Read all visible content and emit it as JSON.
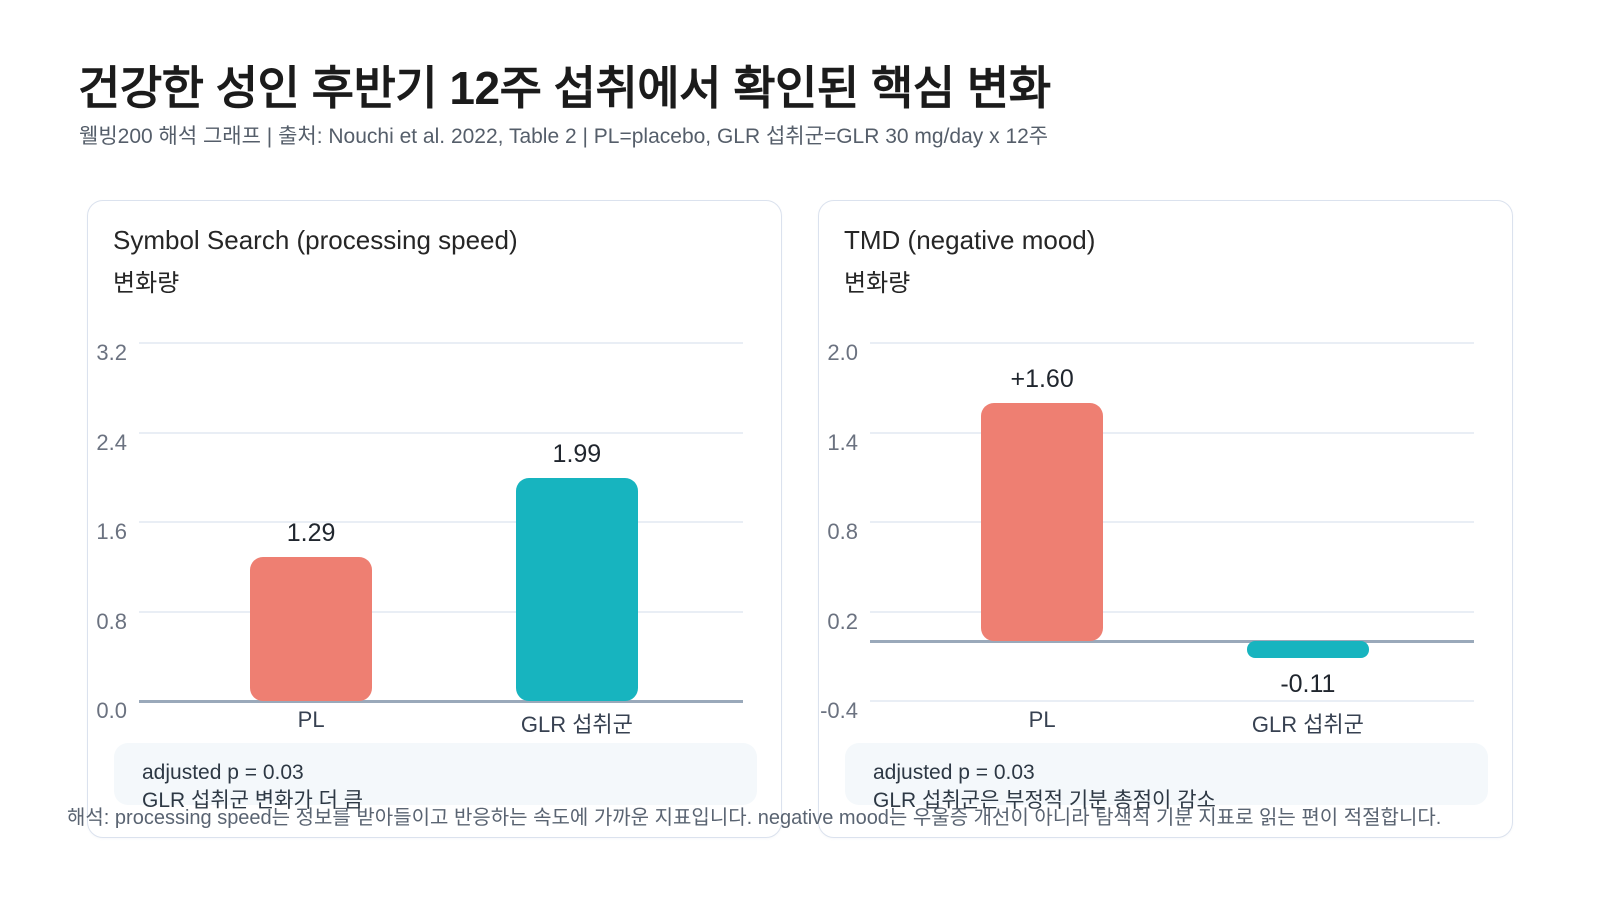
{
  "header": {
    "title": "건강한 성인 후반기 12주 섭취에서 확인된 핵심 변화",
    "subtitle": "웰빙200 해석 그래프 | 출처: Nouchi et al. 2022, Table 2 | PL=placebo, GLR 섭취군=GLR 30 mg/day x 12주"
  },
  "footer": {
    "caption": "해석: processing speed는 정보를 받아들이고 반응하는 속도에 가까운 지표입니다. negative mood는 우울증 개선이 아니라 탐색적 기분 지표로 읽는 편이 적절합니다."
  },
  "colors": {
    "pl_bar": "#EE7F72",
    "glr_bar": "#17B4BF",
    "gridline": "#E9EEF5",
    "zero_line": "#9AA9BA",
    "annotation_bg": "#F4F8FB",
    "card_border": "#DBE2EE"
  },
  "chart_data": [
    {
      "type": "bar",
      "title": "Symbol Search (processing speed)",
      "subtitle": "변화량",
      "categories": [
        "PL",
        "GLR 섭취군"
      ],
      "values": [
        1.29,
        1.99
      ],
      "value_labels": [
        "1.29",
        "1.99"
      ],
      "bar_colors": [
        "#EE7F72",
        "#17B4BF"
      ],
      "ylim": [
        0.0,
        3.2
      ],
      "yticks": [
        0.0,
        0.8,
        1.6,
        2.4,
        3.2
      ],
      "ytick_labels": [
        "0.0",
        "0.8",
        "1.6",
        "2.4",
        "3.2"
      ],
      "grid": true,
      "legend": "none",
      "annotation": {
        "line1": "adjusted p = 0.03",
        "line2": "GLR 섭취군 변화가 더 큼"
      }
    },
    {
      "type": "bar",
      "title": "TMD (negative mood)",
      "subtitle": "변화량",
      "categories": [
        "PL",
        "GLR 섭취군"
      ],
      "values": [
        1.6,
        -0.11
      ],
      "value_labels": [
        "+1.60",
        "-0.11"
      ],
      "bar_colors": [
        "#EE7F72",
        "#17B4BF"
      ],
      "ylim": [
        -0.4,
        2.0
      ],
      "yticks": [
        -0.4,
        0.2,
        0.8,
        1.4,
        2.0
      ],
      "ytick_labels": [
        "-0.4",
        "0.2",
        "0.8",
        "1.4",
        "2.0"
      ],
      "grid": true,
      "legend": "none",
      "annotation": {
        "line1": "adjusted p = 0.03",
        "line2": "GLR 섭취군은 부정적 기분 총점이 감소"
      }
    }
  ]
}
